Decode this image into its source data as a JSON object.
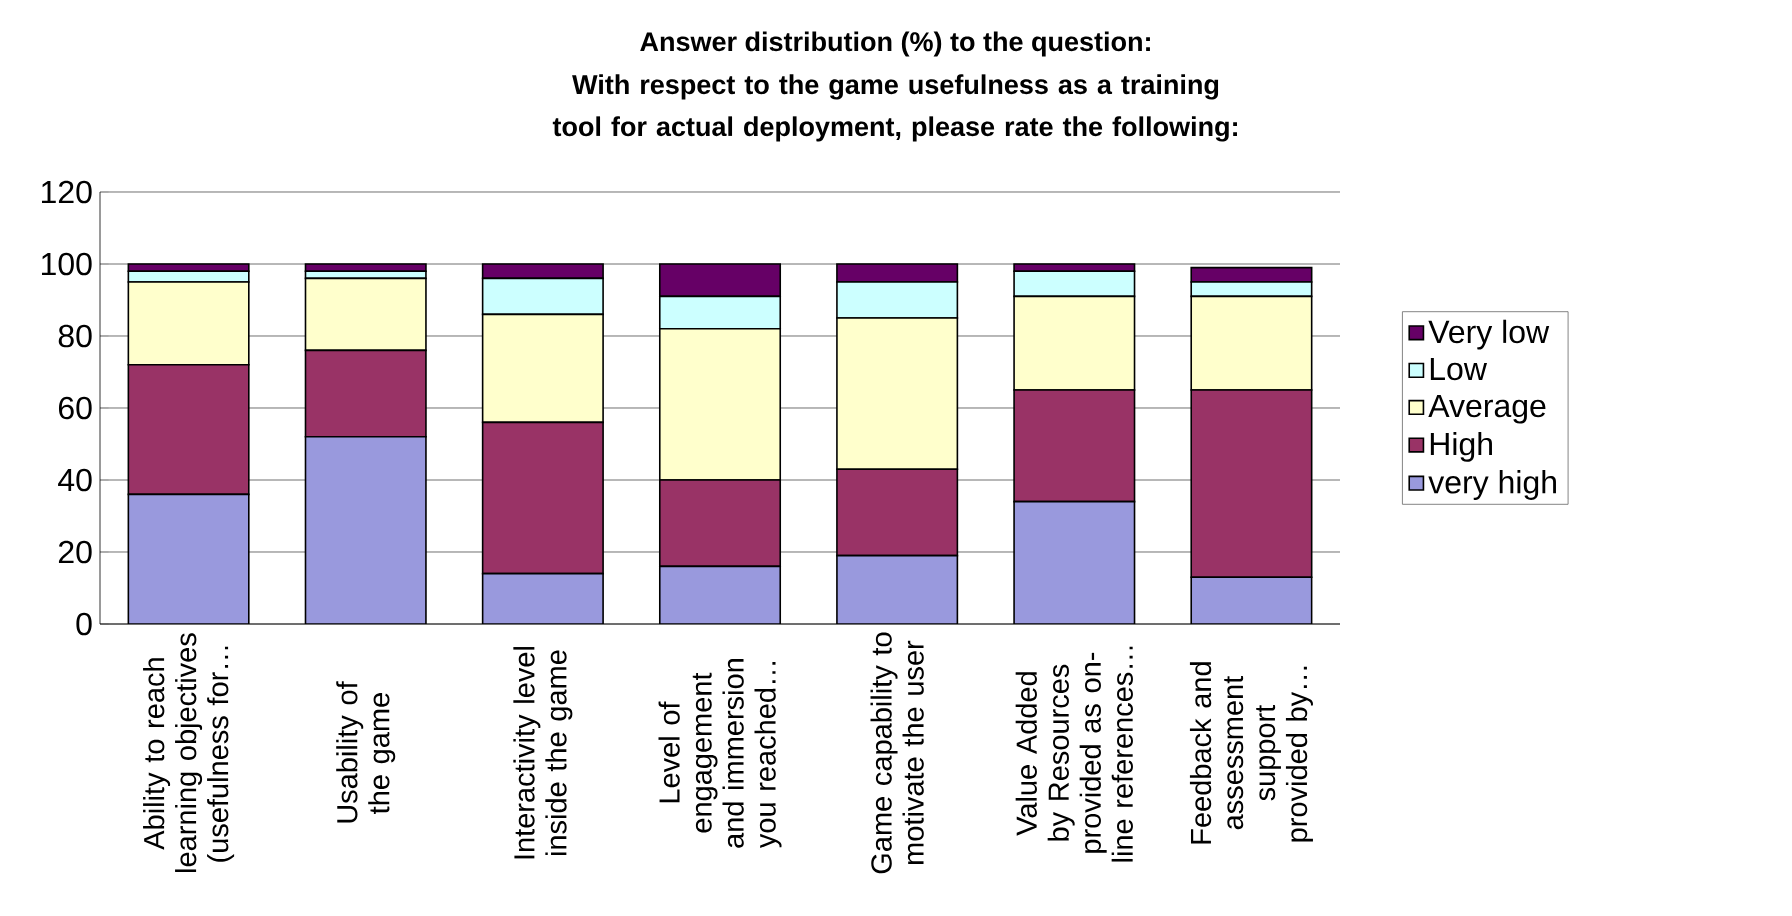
{
  "chart_data": {
    "type": "bar",
    "stacked": true,
    "title": "Answer distribution (%) to the question:",
    "subtitle": "With respect to  the game usefulness as a training tool for actual deployment, please rate the following:",
    "categories": [
      "Ability to reach learning objectives (usefulness for…",
      "Usability of the game",
      "Interactivity level inside the game",
      "Level of engagement and immersion you reached…",
      "Game capability to motivate the user",
      "Value Added by Resources provided as on-line references…",
      "Feedback and assessment support provided by…"
    ],
    "series": [
      {
        "name": "very high",
        "color": "#9999dd",
        "values": [
          36,
          52,
          14,
          16,
          19,
          34,
          13
        ]
      },
      {
        "name": "High",
        "color": "#993366",
        "values": [
          36,
          24,
          42,
          24,
          24,
          31,
          52
        ]
      },
      {
        "name": "Average",
        "color": "#ffffcc",
        "values": [
          23,
          20,
          30,
          42,
          42,
          26,
          26
        ]
      },
      {
        "name": "Low",
        "color": "#ccffff",
        "values": [
          3,
          2,
          10,
          9,
          10,
          7,
          4
        ]
      },
      {
        "name": "Very low",
        "color": "#660066",
        "values": [
          2,
          2,
          4,
          9,
          5,
          2,
          4
        ]
      }
    ],
    "ylim": [
      0,
      120
    ],
    "yticks": [
      0,
      20,
      40,
      60,
      80,
      100,
      120
    ],
    "grid": "y",
    "legend": "right"
  }
}
